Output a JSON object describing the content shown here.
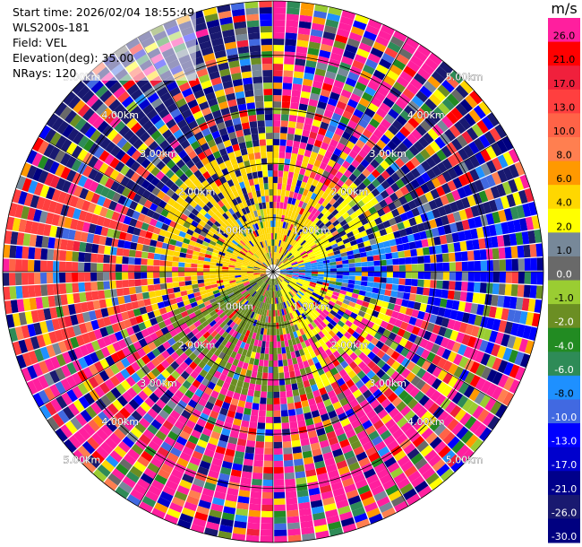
{
  "header": {
    "start_time": "Start time: 2026/02/04 18:55:49",
    "instrument": "WLS200s-181",
    "field": "Field: VEL",
    "elevation": "Elevation(deg): 35.00",
    "nrays": "NRays: 120"
  },
  "colorbar": {
    "unit": "m/s",
    "levels": [
      {
        "label": "26.0",
        "color": "#ff1f9e"
      },
      {
        "label": "21.0",
        "color": "#ff0000"
      },
      {
        "label": "17.0",
        "color": "#f0203c"
      },
      {
        "label": "13.0",
        "color": "#ff3f3f"
      },
      {
        "label": "10.0",
        "color": "#ff6347"
      },
      {
        "label": "8.0",
        "color": "#ff7f50"
      },
      {
        "label": "6.0",
        "color": "#ff9900"
      },
      {
        "label": "4.0",
        "color": "#ffd700"
      },
      {
        "label": "2.0",
        "color": "#ffff00"
      },
      {
        "label": "1.0",
        "color": "#778899"
      },
      {
        "label": "0.0",
        "color": "#696969"
      },
      {
        "label": "-1.0",
        "color": "#9acd32"
      },
      {
        "label": "-2.0",
        "color": "#6b8e23"
      },
      {
        "label": "-4.0",
        "color": "#228b22"
      },
      {
        "label": "-6.0",
        "color": "#2e8b57"
      },
      {
        "label": "-8.0",
        "color": "#1e90ff"
      },
      {
        "label": "-10.0",
        "color": "#4169e1"
      },
      {
        "label": "-13.0",
        "color": "#0000ff"
      },
      {
        "label": "-17.0",
        "color": "#0000cd"
      },
      {
        "label": "-21.0",
        "color": "#00008b"
      },
      {
        "label": "-26.0",
        "color": "#191970"
      },
      {
        "label": "-30.0",
        "color": "#000080"
      }
    ]
  },
  "chart_data": {
    "type": "heatmap",
    "projection": "polar PPI",
    "field": "VEL",
    "units": "m/s",
    "nrays": 120,
    "range_rings_km": [
      1,
      2,
      3,
      4,
      5
    ],
    "ring_labels": [
      "1.00km",
      "2.00km",
      "3.00km",
      "4.00km",
      "5.00km"
    ],
    "spokes_deg": [
      0,
      30,
      60,
      90,
      120,
      150,
      180,
      210,
      240,
      270,
      300,
      330
    ],
    "max_range_km": 5.0,
    "sectors": [
      {
        "az_from": 0,
        "az_to": 40,
        "near_color": "#ffd700",
        "far_color": "#ff1f9e"
      },
      {
        "az_from": 40,
        "az_to": 75,
        "near_color": "#ffff00",
        "far_color": "#191970"
      },
      {
        "az_from": 75,
        "az_to": 105,
        "near_color": "#1e90ff",
        "far_color": "#0000ff"
      },
      {
        "az_from": 105,
        "az_to": 160,
        "near_color": "#ffff00",
        "far_color": "#ff1f9e"
      },
      {
        "az_from": 160,
        "az_to": 250,
        "near_color": "#6b8e23",
        "far_color": "#ff1f9e"
      },
      {
        "az_from": 250,
        "az_to": 290,
        "near_color": "#ffd700",
        "far_color": "#ff3f3f"
      },
      {
        "az_from": 290,
        "az_to": 360,
        "near_color": "#ffd700",
        "far_color": "#191970"
      }
    ]
  }
}
